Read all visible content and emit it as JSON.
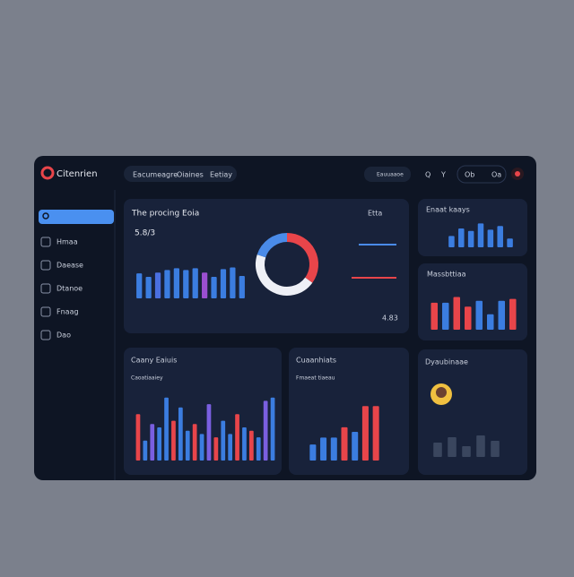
{
  "header": {
    "logo": "Citenrien",
    "tabs": [
      "Eacumeagre",
      "Oiaines",
      "Eetiay"
    ],
    "search": "Eauuaaoe",
    "icons": [
      "Q",
      "Y",
      "Ob",
      "Oa"
    ]
  },
  "sidebar": {
    "items": [
      "Hmaa",
      "Daease",
      "Dtanoe",
      "Fnaag",
      "Dao"
    ]
  },
  "panels": [
    {
      "title": "The procing Eoia",
      "stat": "5.8/3",
      "filter": "Etta",
      "total": "4.83",
      "ylim": [
        0,
        100
      ],
      "bars": [
        58,
        50,
        60,
        66,
        70,
        66,
        70,
        60,
        50,
        68,
        72,
        52
      ],
      "colors": [
        "#3b7de0",
        "#3b7de0",
        "#4a6fe0",
        "#3b7de0",
        "#3b7de0",
        "#3b7de0",
        "#3b7de0",
        "#9b4fd0",
        "#3b7de0",
        "#3b7de0",
        "#3b7de0",
        "#3b7de0"
      ],
      "donut": {
        "values": [
          35,
          45,
          20
        ],
        "colors": [
          "#e8454a",
          "#eef0f6",
          "#4a8be8"
        ]
      }
    },
    {
      "title": "Enaat kaays",
      "ylim": [
        0,
        100
      ],
      "bars": [
        45,
        75,
        65,
        95,
        70,
        85,
        35
      ],
      "colors": [
        "#3b7de0",
        "#3b7de0",
        "#3b7de0",
        "#3b7de0",
        "#3b7de0",
        "#3b7de0",
        "#3b7de0"
      ]
    },
    {
      "title": "Massbttiaa",
      "ylim": [
        0,
        100
      ],
      "bars": [
        70,
        70,
        85,
        60,
        75,
        40,
        75,
        80
      ],
      "colors": [
        "#e8454a",
        "#3b7de0",
        "#e8454a",
        "#e8454a",
        "#3b7de0",
        "#3b7de0",
        "#3b7de0",
        "#e8454a"
      ]
    },
    {
      "title": "Caany Eaiuis",
      "subtitle": "Caoatiaaiey",
      "ylim": [
        0,
        100
      ],
      "bars": [
        70,
        30,
        55,
        50,
        95,
        60,
        80,
        45,
        55,
        40,
        85,
        35,
        60,
        40,
        70,
        50,
        45,
        35,
        90,
        95
      ],
      "colors": [
        "#e8454a",
        "#3b7de0",
        "#7a5fe0",
        "#3b7de0",
        "#3b7de0",
        "#e8454a",
        "#3b7de0",
        "#3b7de0",
        "#e8454a",
        "#3b7de0",
        "#7a5fe0",
        "#e8454a",
        "#3b7de0",
        "#3b7de0",
        "#e8454a",
        "#3b7de0",
        "#e8454a",
        "#3b7de0",
        "#7a5fe0",
        "#3b7de0"
      ]
    },
    {
      "title": "Cuaanhiats",
      "subtitle": "Fmaeat tiaeau",
      "ylim": [
        0,
        100
      ],
      "bars": [
        28,
        40,
        40,
        58,
        50,
        95,
        95
      ],
      "colors": [
        "#3b7de0",
        "#3b7de0",
        "#3b7de0",
        "#e8454a",
        "#3b7de0",
        "#e8454a",
        "#e8454a"
      ]
    },
    {
      "title": "Dyaubinaae",
      "ylim": [
        0,
        100
      ],
      "bars": [
        40,
        55,
        30,
        60,
        45
      ],
      "colors": [
        "#3a465e",
        "#3a465e",
        "#3a465e",
        "#3a465e",
        "#3a465e"
      ]
    }
  ]
}
